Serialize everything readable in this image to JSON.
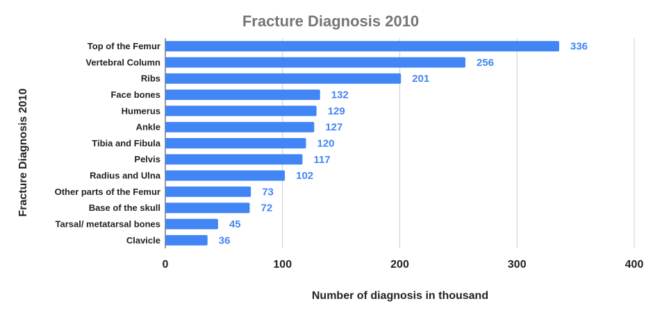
{
  "chart_data": {
    "type": "bar",
    "orientation": "horizontal",
    "title": "Fracture Diagnosis 2010",
    "x_label": "Number of diagnosis in thousand",
    "y_label": "Fracture Diagnosis 2010",
    "categories": [
      "Top of the Femur",
      "Vertebral Column",
      "Ribs",
      "Face bones",
      "Humerus",
      "Ankle",
      "Tibia and Fibula",
      "Pelvis",
      "Radius and Ulna",
      "Other parts of the Femur",
      "Base of the skull",
      "Tarsal/ metatarsal bones",
      "Clavicle"
    ],
    "values": [
      336,
      256,
      201,
      132,
      129,
      127,
      120,
      117,
      102,
      73,
      72,
      45,
      36
    ],
    "color": "#4285f4",
    "xlim": [
      0,
      400
    ],
    "xticks": [
      0,
      100,
      200,
      300,
      400
    ],
    "grid": true
  }
}
